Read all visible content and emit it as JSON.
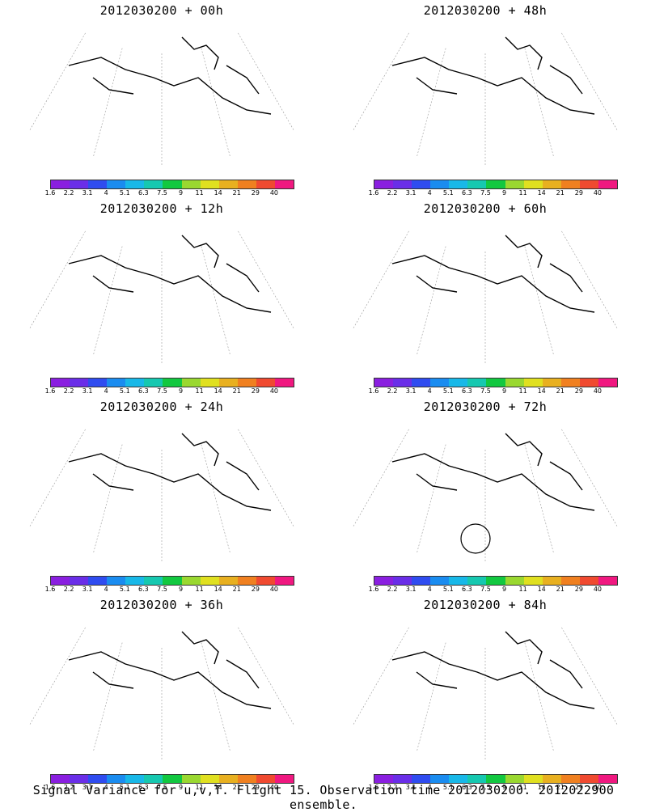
{
  "panels": [
    {
      "title": "2012030200 + 00h",
      "level": 0.08
    },
    {
      "title": "2012030200 + 48h",
      "level": 0.62
    },
    {
      "title": "2012030200 + 12h",
      "level": 0.28
    },
    {
      "title": "2012030200 + 60h",
      "level": 0.72
    },
    {
      "title": "2012030200 + 24h",
      "level": 0.42
    },
    {
      "title": "2012030200 + 72h",
      "level": 0.82
    },
    {
      "title": "2012030200 + 36h",
      "level": 0.52
    },
    {
      "title": "2012030200 + 84h",
      "level": 0.92
    }
  ],
  "colorbar": {
    "labels": [
      "1.6",
      "2.2",
      "3.1",
      "4",
      "5.1",
      "6.3",
      "7.5",
      "9",
      "11",
      "14",
      "21",
      "29",
      "40"
    ],
    "colors": [
      "#8a1fe0",
      "#6a2ee8",
      "#2f4cf0",
      "#1a8cf0",
      "#18b8e8",
      "#16c8b0",
      "#12c840",
      "#9ad830",
      "#e0e020",
      "#e8b020",
      "#f08020",
      "#f04a30",
      "#f01880"
    ]
  },
  "footer": "Signal Variance for u,v,T. Flight 15. Observation time 2012030200. 2012022900 ensemble."
}
